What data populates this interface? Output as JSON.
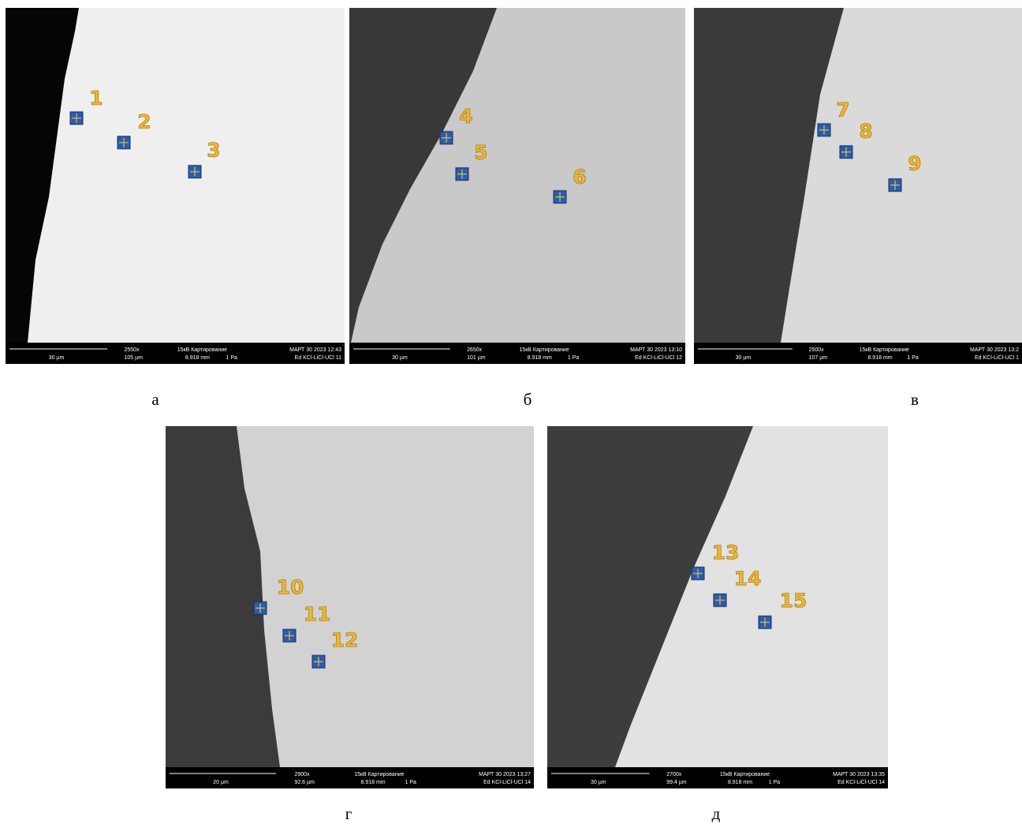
{
  "panels": [
    {
      "label": "а",
      "info": {
        "scale": "30 µm",
        "magnification": "2550x",
        "field": "105 µm",
        "mode": "15кВ Картирование",
        "distance": "8.918 mm",
        "pressure": "1 Pa",
        "date": "МАРТ 30 2023 12:43",
        "sample": "Ed KCl-LiCl-UCl 11"
      },
      "points": [
        1,
        2,
        3
      ]
    },
    {
      "label": "б",
      "info": {
        "scale": "30 µm",
        "magnification": "2650x",
        "field": "101 µm",
        "mode": "15кВ Картирование",
        "distance": "8.918 mm",
        "pressure": "1 Pa",
        "date": "МАРТ 30 2023 13:10",
        "sample": "Ed KCl-LiCl-UCl 12"
      },
      "points": [
        4,
        5,
        6
      ]
    },
    {
      "label": "в",
      "info": {
        "scale": "30 µm",
        "magnification": "2500x",
        "field": "107 µm",
        "mode": "15кВ Картирование",
        "distance": "8.918 mm",
        "pressure": "1 Pa",
        "date": "МАРТ 30 2023 13:2",
        "sample": "Ed KCl-LiCl-UCl 1"
      },
      "points": [
        7,
        8,
        9
      ]
    },
    {
      "label": "г",
      "info": {
        "scale": "20 µm",
        "magnification": "2900x",
        "field": "92.6 µm",
        "mode": "15кВ Картирование",
        "distance": "8.918 mm",
        "pressure": "1 Pa",
        "date": "МАРТ 30 2023 13:27",
        "sample": "Ed KCl-LiCl-UCl 14"
      },
      "points": [
        10,
        11,
        12
      ]
    },
    {
      "label": "д",
      "info": {
        "scale": "30 µm",
        "magnification": "2700x",
        "field": "99.4 µm",
        "mode": "15кВ Картирование",
        "distance": "8.918 mm",
        "pressure": "1 Pa",
        "date": "МАРТ 30 2023 13:35",
        "sample": "Ed KCl-LiCl-UCl 14"
      },
      "points": [
        13,
        14,
        15
      ]
    }
  ]
}
